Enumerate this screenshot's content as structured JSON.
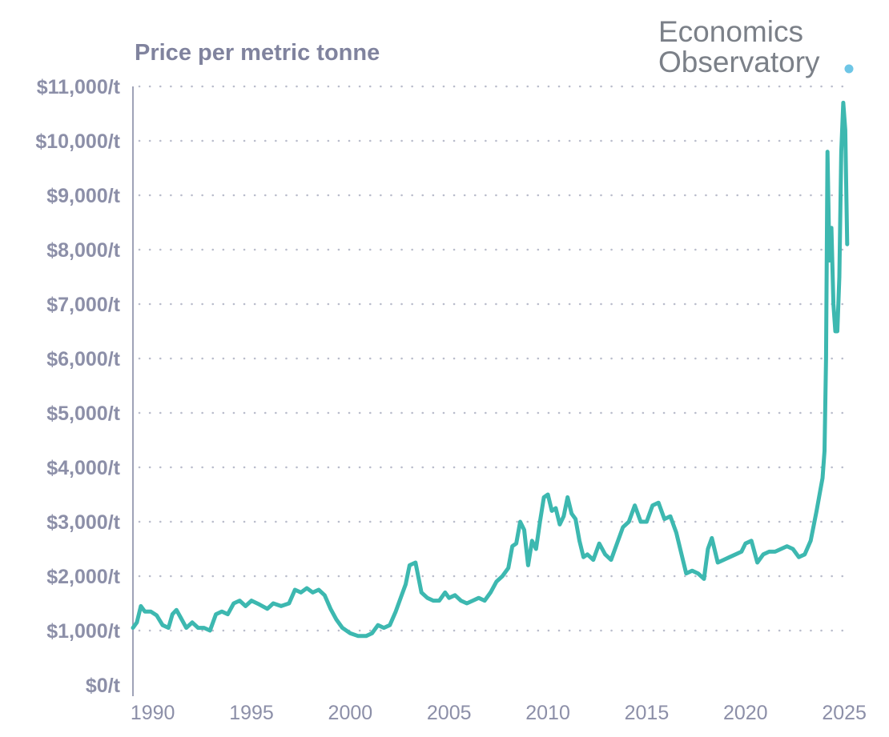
{
  "brand": {
    "line1": "Economics",
    "line2": "Observatory",
    "dot_color": "#6ec6e6",
    "text_color": "#7b8088"
  },
  "chart_data": {
    "type": "line",
    "title": "Price per metric tonne",
    "xlabel": "",
    "ylabel": "",
    "xlim": [
      1989.0,
      2025.4
    ],
    "ylim": [
      0,
      11000
    ],
    "grid": true,
    "line_color": "#3db8b0",
    "x_ticks": [
      1990,
      1995,
      2000,
      2005,
      2010,
      2015,
      2020,
      2025
    ],
    "x_tick_labels": [
      "1990",
      "1995",
      "2000",
      "2005",
      "2010",
      "2015",
      "2020",
      "2025"
    ],
    "y_ticks": [
      0,
      1000,
      2000,
      3000,
      4000,
      5000,
      6000,
      7000,
      8000,
      9000,
      10000,
      11000
    ],
    "y_tick_labels": [
      "$0/t",
      "$1,000/t",
      "$2,000/t",
      "$3,000/t",
      "$4,000/t",
      "$5,000/t",
      "$6,000/t",
      "$7,000/t",
      "$8,000/t",
      "$9,000/t",
      "$10,000/t",
      "$11,000/t"
    ],
    "series": [
      {
        "name": "Price per metric tonne",
        "x": [
          1989.0,
          1989.2,
          1989.4,
          1989.6,
          1989.9,
          1990.2,
          1990.5,
          1990.8,
          1991.0,
          1991.2,
          1991.4,
          1991.7,
          1992.0,
          1992.3,
          1992.6,
          1992.9,
          1993.2,
          1993.5,
          1993.8,
          1994.1,
          1994.4,
          1994.7,
          1995.0,
          1995.4,
          1995.8,
          1996.1,
          1996.5,
          1996.9,
          1997.2,
          1997.5,
          1997.8,
          1998.1,
          1998.4,
          1998.7,
          1999.0,
          1999.3,
          1999.6,
          2000.0,
          2000.4,
          2000.8,
          2001.1,
          2001.4,
          2001.7,
          2002.0,
          2002.3,
          2002.6,
          2002.8,
          2003.0,
          2003.3,
          2003.6,
          2003.9,
          2004.2,
          2004.5,
          2004.8,
          2005.0,
          2005.3,
          2005.6,
          2005.9,
          2006.2,
          2006.5,
          2006.8,
          2007.1,
          2007.4,
          2007.7,
          2008.0,
          2008.2,
          2008.4,
          2008.6,
          2008.8,
          2009.0,
          2009.2,
          2009.4,
          2009.6,
          2009.8,
          2010.0,
          2010.2,
          2010.4,
          2010.6,
          2010.8,
          2011.0,
          2011.2,
          2011.4,
          2011.6,
          2011.8,
          2012.0,
          2012.3,
          2012.6,
          2012.9,
          2013.2,
          2013.5,
          2013.8,
          2014.1,
          2014.4,
          2014.7,
          2015.0,
          2015.3,
          2015.6,
          2015.9,
          2016.2,
          2016.5,
          2016.8,
          2017.0,
          2017.3,
          2017.6,
          2017.9,
          2018.1,
          2018.3,
          2018.6,
          2018.9,
          2019.2,
          2019.5,
          2019.8,
          2020.0,
          2020.3,
          2020.6,
          2020.9,
          2021.2,
          2021.5,
          2021.8,
          2022.1,
          2022.4,
          2022.7,
          2023.0,
          2023.3,
          2023.6,
          2023.8,
          2023.9,
          2024.0,
          2024.08,
          2024.15,
          2024.25,
          2024.35,
          2024.45,
          2024.55,
          2024.65,
          2024.75,
          2024.85,
          2024.95,
          2025.05,
          2025.15
        ],
        "y": [
          1050,
          1150,
          1450,
          1350,
          1350,
          1280,
          1100,
          1050,
          1300,
          1380,
          1250,
          1050,
          1150,
          1050,
          1050,
          1000,
          1300,
          1350,
          1300,
          1500,
          1550,
          1450,
          1550,
          1480,
          1400,
          1500,
          1450,
          1500,
          1750,
          1700,
          1780,
          1700,
          1750,
          1650,
          1400,
          1200,
          1050,
          950,
          900,
          900,
          950,
          1100,
          1050,
          1100,
          1350,
          1650,
          1850,
          2200,
          2250,
          1700,
          1600,
          1550,
          1550,
          1700,
          1600,
          1650,
          1550,
          1500,
          1550,
          1600,
          1550,
          1700,
          1900,
          2000,
          2150,
          2550,
          2600,
          3000,
          2850,
          2200,
          2650,
          2500,
          3000,
          3450,
          3500,
          3200,
          3250,
          2950,
          3100,
          3450,
          3150,
          3050,
          2650,
          2350,
          2400,
          2300,
          2600,
          2400,
          2300,
          2600,
          2900,
          3000,
          3300,
          3000,
          3000,
          3300,
          3350,
          3050,
          3100,
          2800,
          2350,
          2050,
          2100,
          2050,
          1950,
          2500,
          2700,
          2250,
          2300,
          2350,
          2400,
          2450,
          2600,
          2650,
          2250,
          2400,
          2450,
          2450,
          2500,
          2550,
          2500,
          2350,
          2400,
          2650,
          3200,
          3600,
          3800,
          4300,
          6000,
          9800,
          7800,
          8400,
          7000,
          6500,
          6500,
          7500,
          9800,
          10700,
          10200,
          8100
        ]
      }
    ]
  }
}
